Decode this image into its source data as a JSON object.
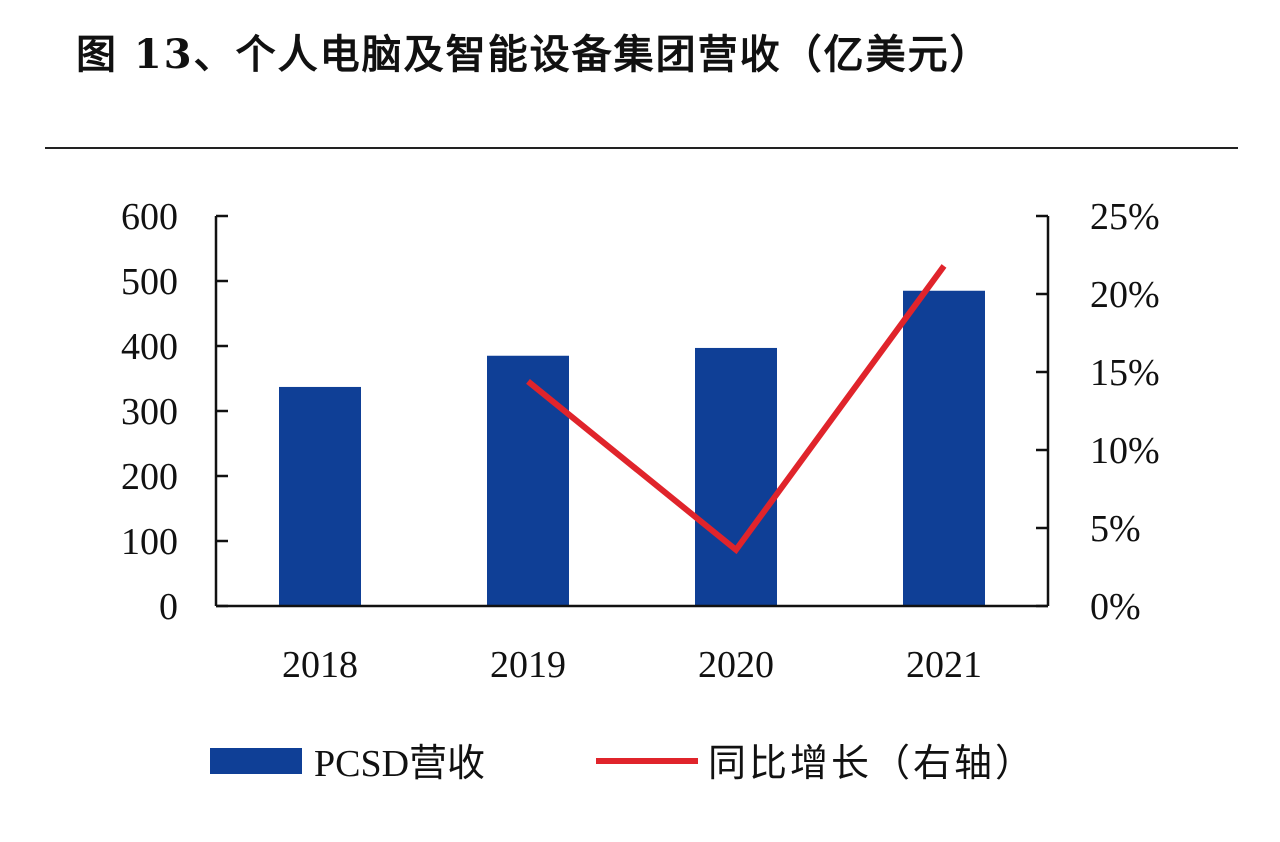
{
  "title": "图 13、个人电脑及智能设备集团营收（亿美元）",
  "chart_data": {
    "type": "bar+line",
    "title": "图 13、个人电脑及智能设备集团营收（亿美元）",
    "categories": [
      "2018",
      "2019",
      "2020",
      "2021"
    ],
    "y_left": {
      "range": [
        0,
        600
      ],
      "ticks": [
        "0",
        "100",
        "200",
        "300",
        "400",
        "500",
        "600"
      ]
    },
    "y_right": {
      "range": [
        0,
        25
      ],
      "ticks": [
        "0%",
        "5%",
        "10%",
        "15%",
        "20%",
        "25%"
      ]
    },
    "series": [
      {
        "name": "PCSD营收",
        "type": "bar",
        "axis": "left",
        "color": "#0f3f96",
        "values": [
          337,
          385,
          397,
          485
        ]
      },
      {
        "name": "同比增长（右轴）",
        "type": "line",
        "axis": "right",
        "color": "#e0242b",
        "values": [
          null,
          14.4,
          3.6,
          21.8
        ]
      }
    ],
    "legend": "bottom",
    "grid": false
  }
}
